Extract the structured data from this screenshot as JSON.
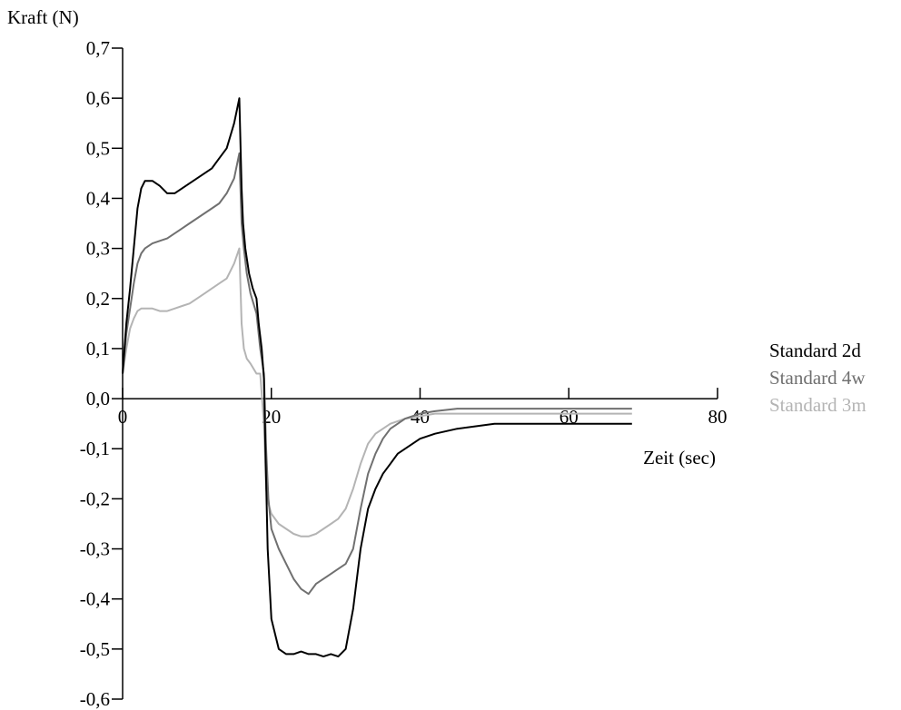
{
  "chart_data": {
    "type": "line",
    "ylabel": "Kraft (N)",
    "xlabel": "Zeit (sec)",
    "xlim": [
      0,
      80
    ],
    "ylim": [
      -0.6,
      0.7
    ],
    "x_ticks": [
      0,
      20,
      40,
      60,
      80
    ],
    "x_tick_labels": [
      "0",
      "20",
      "40",
      "60",
      "80"
    ],
    "y_ticks": [
      0.7,
      0.6,
      0.5,
      0.4,
      0.3,
      0.2,
      0.1,
      0.0,
      -0.1,
      -0.2,
      -0.3,
      -0.4,
      -0.5,
      -0.6
    ],
    "y_tick_labels": [
      "0,7",
      "0,6",
      "0,5",
      "0,4",
      "0,3",
      "0,2",
      "0,1",
      "0,0",
      "-0,1",
      "-0,2",
      "-0,3",
      "-0,4",
      "-0,5",
      "-0,6"
    ],
    "grid": false,
    "legend_position": "right",
    "series": [
      {
        "name": "Standard 2d",
        "color": "#000000",
        "x": [
          0,
          0.5,
          1,
          1.5,
          2,
          2.5,
          3,
          4,
          5,
          6,
          7,
          8,
          9,
          10,
          11,
          12,
          13,
          14,
          15,
          15.7,
          16,
          16.2,
          16.5,
          17,
          17.5,
          18,
          18.3,
          18.7,
          19,
          19.2,
          19.5,
          20,
          21,
          22,
          23,
          24,
          25,
          26,
          27,
          28,
          29,
          30,
          31,
          32,
          33,
          34,
          35,
          36,
          37,
          38,
          40,
          42,
          45,
          50,
          55,
          60,
          65,
          68.5
        ],
        "y": [
          0.05,
          0.15,
          0.22,
          0.3,
          0.38,
          0.42,
          0.435,
          0.435,
          0.425,
          0.41,
          0.41,
          0.42,
          0.43,
          0.44,
          0.45,
          0.46,
          0.48,
          0.5,
          0.55,
          0.6,
          0.42,
          0.35,
          0.3,
          0.25,
          0.22,
          0.2,
          0.15,
          0.1,
          0.04,
          -0.1,
          -0.3,
          -0.44,
          -0.5,
          -0.51,
          -0.51,
          -0.505,
          -0.51,
          -0.51,
          -0.515,
          -0.51,
          -0.515,
          -0.5,
          -0.42,
          -0.3,
          -0.22,
          -0.18,
          -0.15,
          -0.13,
          -0.11,
          -0.1,
          -0.08,
          -0.07,
          -0.06,
          -0.05,
          -0.05,
          -0.05,
          -0.05,
          -0.05
        ]
      },
      {
        "name": "Standard 4w",
        "color": "#707070",
        "x": [
          0,
          0.5,
          1,
          1.5,
          2,
          2.5,
          3,
          4,
          5,
          6,
          7,
          8,
          9,
          10,
          11,
          12,
          13,
          14,
          15,
          15.7,
          16,
          16.3,
          16.7,
          17.2,
          18,
          18.5,
          19,
          19.3,
          19.6,
          20,
          21,
          22,
          23,
          24,
          25,
          26,
          27,
          28,
          29,
          30,
          31,
          32,
          33,
          34,
          35,
          36,
          37,
          38,
          40,
          42,
          45,
          50,
          55,
          60,
          65,
          68.5
        ],
        "y": [
          0.05,
          0.13,
          0.18,
          0.23,
          0.27,
          0.29,
          0.3,
          0.31,
          0.315,
          0.32,
          0.33,
          0.34,
          0.35,
          0.36,
          0.37,
          0.38,
          0.39,
          0.41,
          0.44,
          0.49,
          0.35,
          0.3,
          0.25,
          0.21,
          0.17,
          0.1,
          0.05,
          -0.1,
          -0.2,
          -0.26,
          -0.3,
          -0.33,
          -0.36,
          -0.38,
          -0.39,
          -0.37,
          -0.36,
          -0.35,
          -0.34,
          -0.33,
          -0.3,
          -0.22,
          -0.15,
          -0.11,
          -0.08,
          -0.06,
          -0.05,
          -0.04,
          -0.03,
          -0.025,
          -0.02,
          -0.02,
          -0.02,
          -0.02,
          -0.02,
          -0.02
        ]
      },
      {
        "name": "Standard 3m",
        "color": "#b4b4b4",
        "x": [
          0,
          0.5,
          1,
          1.5,
          2,
          2.5,
          3,
          4,
          5,
          6,
          7,
          8,
          9,
          10,
          11,
          12,
          13,
          14,
          15,
          15.7,
          16,
          16.3,
          16.7,
          17.2,
          18,
          18.5,
          19,
          19.3,
          19.6,
          20,
          21,
          22,
          23,
          24,
          25,
          26,
          27,
          28,
          29,
          30,
          31,
          32,
          33,
          34,
          35,
          36,
          37,
          38,
          40,
          42,
          45,
          50,
          55,
          60,
          65,
          68.5
        ],
        "y": [
          0.05,
          0.1,
          0.14,
          0.16,
          0.175,
          0.18,
          0.18,
          0.18,
          0.175,
          0.175,
          0.18,
          0.185,
          0.19,
          0.2,
          0.21,
          0.22,
          0.23,
          0.24,
          0.27,
          0.3,
          0.15,
          0.1,
          0.08,
          0.07,
          0.05,
          0.05,
          -0.05,
          -0.18,
          -0.21,
          -0.23,
          -0.25,
          -0.26,
          -0.27,
          -0.275,
          -0.275,
          -0.27,
          -0.26,
          -0.25,
          -0.24,
          -0.22,
          -0.18,
          -0.13,
          -0.09,
          -0.07,
          -0.06,
          -0.05,
          -0.045,
          -0.04,
          -0.035,
          -0.03,
          -0.03,
          -0.03,
          -0.03,
          -0.03,
          -0.03,
          -0.03
        ]
      }
    ]
  }
}
